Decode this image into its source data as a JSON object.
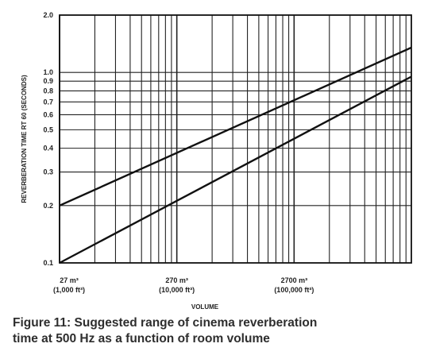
{
  "chart_data": {
    "type": "line",
    "xlabel": "VOLUME",
    "ylabel": "REVERBERATION TIME RT 60 (SECONDS)",
    "x_scale": "log",
    "y_scale": "log",
    "xlim_m3": [
      27,
      27000
    ],
    "ylim": [
      0.1,
      2.0
    ],
    "grid": true,
    "y_ticks": [
      {
        "value": 2.0,
        "label": "2.0"
      },
      {
        "value": 1.0,
        "label": "1.0"
      },
      {
        "value": 0.9,
        "label": "0.9"
      },
      {
        "value": 0.8,
        "label": "0.8"
      },
      {
        "value": 0.7,
        "label": "0.7"
      },
      {
        "value": 0.6,
        "label": "0.6"
      },
      {
        "value": 0.5,
        "label": "0.5"
      },
      {
        "value": 0.4,
        "label": "0.4"
      },
      {
        "value": 0.3,
        "label": "0.3"
      },
      {
        "value": 0.2,
        "label": "0.2"
      },
      {
        "value": 0.1,
        "label": "0.1"
      }
    ],
    "x_ticks": [
      {
        "value": 27,
        "label_metric": "27 m³",
        "label_imperial": "(1,000 ft³)"
      },
      {
        "value": 270,
        "label_metric": "270 m³",
        "label_imperial": "(10,000 ft³)"
      },
      {
        "value": 2700,
        "label_metric": "2700 m³",
        "label_imperial": "(100,000 ft³)"
      }
    ],
    "series": [
      {
        "x": [
          27,
          27000
        ],
        "y": [
          0.2,
          1.35
        ],
        "color": "#111111"
      },
      {
        "x": [
          27,
          27000
        ],
        "y": [
          0.1,
          0.95
        ],
        "color": "#111111"
      }
    ]
  },
  "caption": {
    "line1": "Figure 11: Suggested range of cinema reverberation",
    "line2": "time at 500 Hz as a function of room volume"
  }
}
